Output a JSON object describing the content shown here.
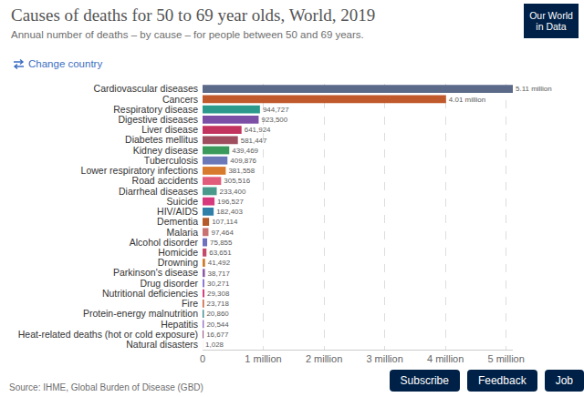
{
  "chart_data": {
    "type": "bar",
    "orientation": "horizontal",
    "title": "Causes of deaths for 50 to 69 year olds, World, 2019",
    "subtitle": "Annual number of deaths – by cause – for people between 50 and 69 years.",
    "annotations": [
      "Our World in Data",
      "Change country",
      "Source: IHME, Global Burden of Disease (GBD)"
    ],
    "categories": [
      "Cardiovascular diseases",
      "Cancers",
      "Respiratory disease",
      "Digestive diseases",
      "Liver disease",
      "Diabetes mellitus",
      "Kidney disease",
      "Tuberculosis",
      "Lower respiratory infections",
      "Road accidents",
      "Diarrheal diseases",
      "Suicide",
      "HIV/AIDS",
      "Dementia",
      "Malaria",
      "Alcohol disorder",
      "Homicide",
      "Drowning",
      "Parkinson's disease",
      "Drug disorder",
      "Nutritional deficiencies",
      "Fire",
      "Protein-energy malnutrition",
      "Hepatitis",
      "Heat-related deaths (hot or cold exposure)",
      "Natural disasters"
    ],
    "values": [
      5110000,
      4010000,
      944727,
      923500,
      641924,
      581447,
      439469,
      409876,
      381558,
      305516,
      233400,
      196527,
      182403,
      107114,
      97464,
      75855,
      63651,
      41492,
      38717,
      30271,
      29308,
      23718,
      20860,
      20544,
      16677,
      1028
    ],
    "value_labels": [
      "5.11 million",
      "4.01 million",
      "944,727",
      "923,500",
      "641,924",
      "581,447",
      "439,469",
      "409,876",
      "381,558",
      "305,516",
      "233,400",
      "196,527",
      "182,403",
      "107,114",
      "97,464",
      "75,855",
      "63,651",
      "41,492",
      "38,717",
      "30,271",
      "29,308",
      "23,718",
      "20,860",
      "20,544",
      "16,677",
      "1,028"
    ],
    "colors": [
      "#5b6a88",
      "#c0592b",
      "#2b9a8c",
      "#7b4fa6",
      "#c2335d",
      "#9e4e5e",
      "#3a9a5c",
      "#6a78b8",
      "#d87a2e",
      "#e05c7a",
      "#4a9a8c",
      "#d63a7c",
      "#2f7fa8",
      "#b55a2a",
      "#c87272",
      "#6f6fbf",
      "#c44a6a",
      "#d27a2c",
      "#8a5aa8",
      "#8a7ad0",
      "#d03c7c",
      "#d0603c",
      "#3a8a8a",
      "#9070c0",
      "#9a5a8a",
      "#b04050"
    ],
    "xlim": [
      0,
      5110000
    ],
    "xticks": [
      0,
      {
        "value": 1000000,
        "label": "1 million"
      },
      {
        "value": 2000000,
        "label": "2 million"
      },
      {
        "value": 3000000,
        "label": "3 million"
      },
      {
        "value": 4000000,
        "label": "4 million"
      },
      {
        "value": 5000000,
        "label": "5 million"
      }
    ],
    "grid": true,
    "data_labels": true
  },
  "buttons": [
    "Subscribe",
    "Feedback",
    "Job"
  ]
}
